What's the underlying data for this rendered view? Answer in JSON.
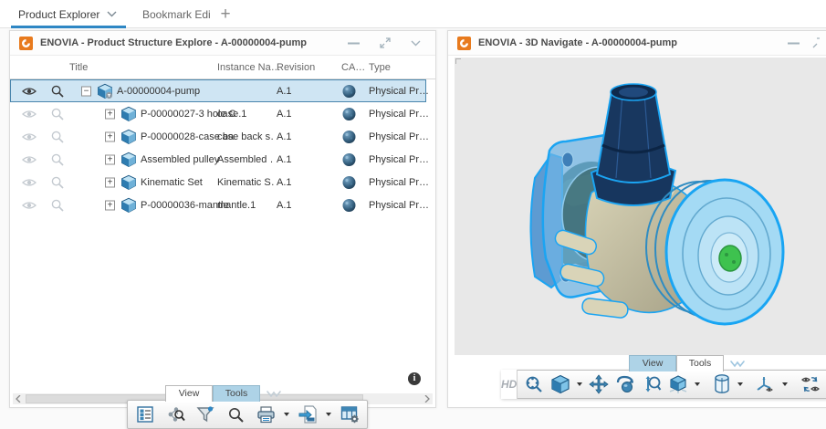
{
  "browser_tabs": {
    "items": [
      {
        "label": "Product Explorer",
        "active": true,
        "has_dropdown": true
      },
      {
        "label": "Bookmark Edi",
        "active": false
      }
    ],
    "add_label": "+"
  },
  "left_panel": {
    "title": "ENOVIA - Product Structure Explore - A-00000004-pump",
    "window_control_icons": [
      "minimize-icon",
      "expand-icon",
      "chevron-down-icon"
    ],
    "table": {
      "columns": [
        "Title",
        "Instance Na…",
        "Revision",
        "CA…",
        "Type"
      ],
      "expander_glyphs": {
        "minus": "−",
        "plus": "+"
      },
      "rows": [
        {
          "title": "A-00000004-pump",
          "instance": "",
          "revision": "A.1",
          "type": "Physical Pr…",
          "expander": "minus",
          "selected": true,
          "indent": 0,
          "has_filter_badge": true
        },
        {
          "title": "P-00000027-3 hole C…",
          "instance": "case.1",
          "revision": "A.1",
          "type": "Physical Pr…",
          "expander": "plus",
          "selected": false,
          "indent": 1,
          "has_filter_badge": false
        },
        {
          "title": "P-00000028-case ba…",
          "instance": "case back s…",
          "revision": "A.1",
          "type": "Physical Pr…",
          "expander": "plus",
          "selected": false,
          "indent": 1,
          "has_filter_badge": false
        },
        {
          "title": "Assembled pulley",
          "instance": "Assembled …",
          "revision": "A.1",
          "type": "Physical Pr…",
          "expander": "plus",
          "selected": false,
          "indent": 1,
          "has_filter_badge": false
        },
        {
          "title": "Kinematic Set",
          "instance": "Kinematic S…",
          "revision": "A.1",
          "type": "Physical Pr…",
          "expander": "plus",
          "selected": false,
          "indent": 1,
          "has_filter_badge": false
        },
        {
          "title": "P-00000036-mantle",
          "instance": "mantle.1",
          "revision": "A.1",
          "type": "Physical Pr…",
          "expander": "plus",
          "selected": false,
          "indent": 1,
          "has_filter_badge": false
        }
      ]
    },
    "footer_tabs": [
      {
        "label": "View",
        "active": false
      },
      {
        "label": "Tools",
        "active": true
      }
    ],
    "toolbar_icon_names": [
      "tree-view-icon",
      "structure-search-icon",
      "filter-icon",
      "search-icon",
      "print-icon",
      "export-csv-icon",
      "table-settings-icon"
    ]
  },
  "right_panel": {
    "title": "ENOVIA - 3D Navigate - A-00000004-pump",
    "footer_tabs": [
      {
        "label": "View",
        "active": true
      },
      {
        "label": "Tools",
        "active": false
      }
    ],
    "toolbar": {
      "hd_label": "HD",
      "icon_names": [
        "fit-all-icon",
        "iso-view-cube-icon",
        "pan-icon",
        "rotate-icon",
        "zoom-icon",
        "render-style-icon",
        "section-cylinder-icon",
        "axes-icon",
        "swap-visibility-icon",
        "close-x-icon"
      ]
    }
  },
  "colors": {
    "accent_blue": "#2f87c4",
    "selection_bg": "#cfe5f3",
    "selection_border": "#4a86ad",
    "highlight_cyan": "#1ba4f2",
    "viewport_bg": "#e8e8e8",
    "logo_orange": "#e87a1d",
    "hub_green": "#3ec24f"
  }
}
